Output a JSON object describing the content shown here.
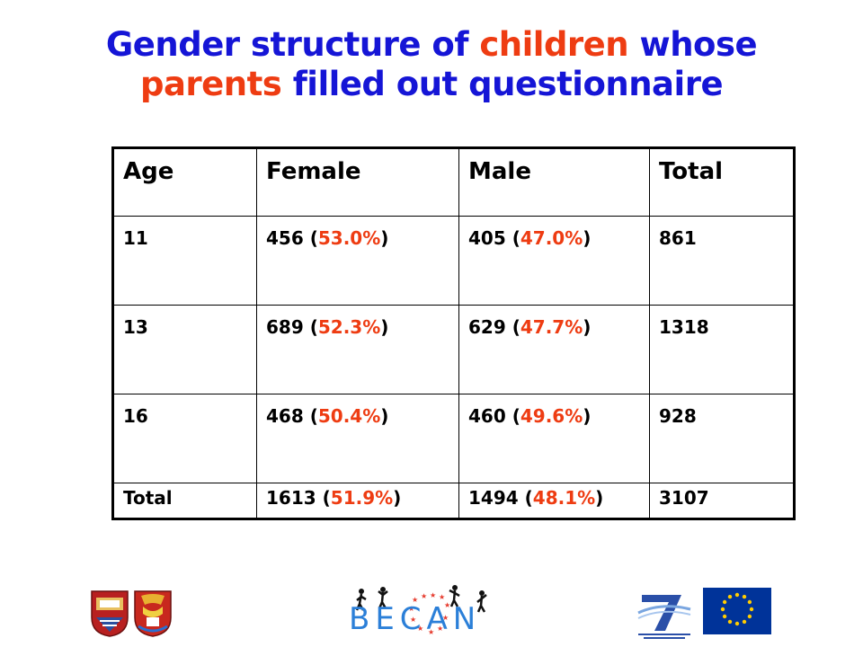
{
  "title": {
    "line1": [
      {
        "text": "Gender structure of ",
        "color": "blue"
      },
      {
        "text": "children",
        "color": "red"
      },
      {
        "text": " whose",
        "color": "blue"
      }
    ],
    "line2": [
      {
        "text": "parents",
        "color": "red"
      },
      {
        "text": " filled out questionnaire",
        "color": "blue"
      }
    ]
  },
  "table": {
    "headers": [
      "Age",
      "Female",
      "Male",
      "Total"
    ],
    "rows": [
      {
        "age": "11",
        "female_n": "456",
        "female_pct": "53.0%",
        "male_n": "405",
        "male_pct": "47.0%",
        "total": "861"
      },
      {
        "age": "13",
        "female_n": "689",
        "female_pct": "52.3%",
        "male_n": "629",
        "male_pct": "47.7%",
        "total": "1318"
      },
      {
        "age": "16",
        "female_n": "468",
        "female_pct": "50.4%",
        "male_n": "460",
        "male_pct": "49.6%",
        "total": "928"
      }
    ],
    "total_row": {
      "age": "Total",
      "female_n": "1613",
      "female_pct": "51.9%",
      "male_n": "1494",
      "male_pct": "48.1%",
      "total": "3107"
    }
  },
  "footer": {
    "becan_logo_text": "BECAN",
    "logos": [
      "university-crest-icon",
      "city-crest-icon",
      "becan-logo",
      "fp7-logo",
      "eu-flag-icon"
    ]
  },
  "colors": {
    "blue": "#1515d6",
    "red": "#ee3c12",
    "eu_blue": "#003399",
    "eu_star": "#ffcc00"
  }
}
